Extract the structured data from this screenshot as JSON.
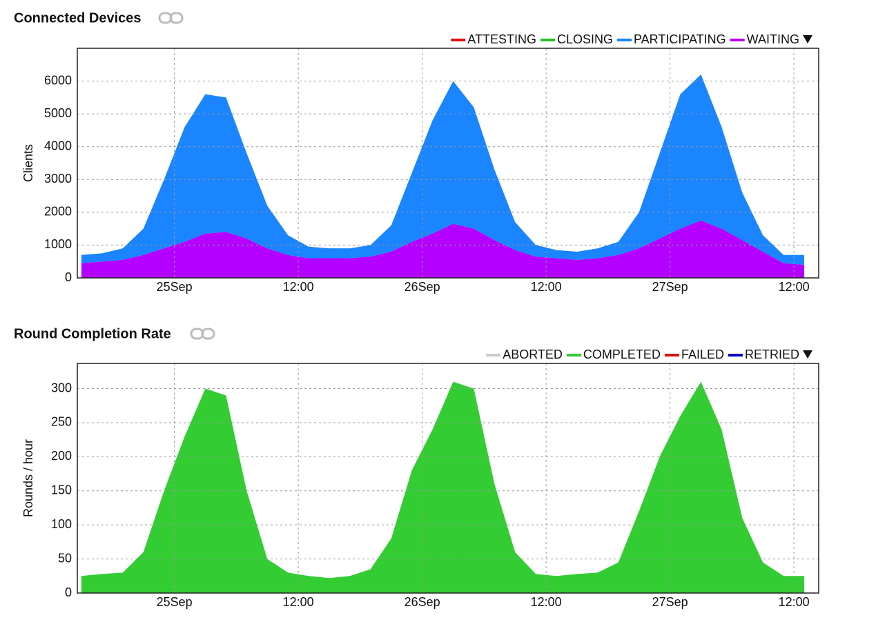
{
  "chart_data": [
    {
      "type": "area",
      "stacked": true,
      "title": "Connected Devices",
      "ylabel": "Clients",
      "x": [
        -9,
        -7,
        -5,
        -3,
        -1,
        1,
        3,
        5,
        7,
        9,
        11,
        13,
        15,
        17,
        19,
        21,
        23,
        25,
        27,
        29,
        31,
        33,
        35,
        37,
        39,
        41,
        43,
        45,
        47,
        49,
        51,
        53,
        55,
        57,
        59,
        61
      ],
      "xlim": [
        -9.4,
        62.4
      ],
      "xticks": [
        {
          "value": 0,
          "label": "25Sep"
        },
        {
          "value": 12,
          "label": "12:00"
        },
        {
          "value": 24,
          "label": "26Sep"
        },
        {
          "value": 36,
          "label": "12:00"
        },
        {
          "value": 48,
          "label": "27Sep"
        },
        {
          "value": 60,
          "label": "12:00"
        }
      ],
      "ylim": [
        0,
        7000
      ],
      "yticks": [
        0,
        1000,
        2000,
        3000,
        4000,
        5000,
        6000
      ],
      "grid": true,
      "series": [
        {
          "name": "ATTESTING",
          "color": "#e01010",
          "values": [
            0,
            0,
            0,
            0,
            0,
            0,
            0,
            0,
            0,
            0,
            0,
            0,
            0,
            0,
            0,
            0,
            0,
            0,
            0,
            0,
            0,
            0,
            0,
            0,
            0,
            0,
            0,
            0,
            0,
            0,
            0,
            0,
            0,
            0,
            0,
            0
          ]
        },
        {
          "name": "CLOSING",
          "color": "#22c022",
          "values": [
            0,
            0,
            0,
            0,
            0,
            0,
            0,
            0,
            0,
            0,
            0,
            0,
            0,
            0,
            0,
            0,
            0,
            0,
            0,
            0,
            0,
            0,
            0,
            0,
            0,
            0,
            0,
            0,
            0,
            0,
            0,
            0,
            0,
            0,
            0,
            0
          ]
        },
        {
          "name": "PARTICIPATING",
          "color": "#1a85ff",
          "values": [
            250,
            250,
            350,
            800,
            2100,
            3500,
            4250,
            4100,
            2600,
            1300,
            600,
            350,
            300,
            300,
            350,
            800,
            2100,
            3450,
            4350,
            3700,
            2150,
            850,
            350,
            250,
            250,
            300,
            400,
            1100,
            2600,
            4100,
            4450,
            3100,
            1450,
            500,
            250,
            300
          ]
        },
        {
          "name": "WAITING",
          "color": "#b400ff",
          "values": [
            450,
            500,
            550,
            700,
            900,
            1100,
            1350,
            1400,
            1200,
            900,
            700,
            600,
            600,
            600,
            650,
            800,
            1100,
            1350,
            1650,
            1500,
            1150,
            850,
            650,
            600,
            550,
            600,
            700,
            900,
            1200,
            1500,
            1750,
            1500,
            1150,
            800,
            450,
            400
          ]
        }
      ]
    },
    {
      "type": "area",
      "stacked": true,
      "title": "Round Completion Rate",
      "ylabel": "Rounds / hour",
      "x": [
        -9,
        -7,
        -5,
        -3,
        -1,
        1,
        3,
        5,
        7,
        9,
        11,
        13,
        15,
        17,
        19,
        21,
        23,
        25,
        27,
        29,
        31,
        33,
        35,
        37,
        39,
        41,
        43,
        45,
        47,
        49,
        51,
        53,
        55,
        57,
        59,
        61
      ],
      "xlim": [
        -9.4,
        62.4
      ],
      "xticks": [
        {
          "value": 0,
          "label": "25Sep"
        },
        {
          "value": 12,
          "label": "12:00"
        },
        {
          "value": 24,
          "label": "26Sep"
        },
        {
          "value": 36,
          "label": "12:00"
        },
        {
          "value": 48,
          "label": "27Sep"
        },
        {
          "value": 60,
          "label": "12:00"
        }
      ],
      "ylim": [
        0,
        337
      ],
      "yticks": [
        0,
        50,
        100,
        150,
        200,
        250,
        300
      ],
      "grid": true,
      "series": [
        {
          "name": "ABORTED",
          "color": "#cccccc",
          "values": [
            0,
            0,
            0,
            0,
            0,
            0,
            0,
            0,
            0,
            0,
            0,
            0,
            0,
            0,
            0,
            0,
            0,
            0,
            0,
            0,
            0,
            0,
            0,
            0,
            0,
            0,
            0,
            0,
            0,
            0,
            0,
            0,
            0,
            0,
            0,
            0
          ]
        },
        {
          "name": "COMPLETED",
          "color": "#33cc33",
          "values": [
            25,
            28,
            30,
            60,
            150,
            230,
            300,
            290,
            150,
            50,
            30,
            25,
            22,
            25,
            35,
            80,
            180,
            240,
            310,
            300,
            160,
            60,
            28,
            25,
            28,
            30,
            45,
            120,
            200,
            260,
            310,
            240,
            110,
            45,
            25,
            25
          ]
        },
        {
          "name": "FAILED",
          "color": "#e01010",
          "values": [
            0,
            0,
            0,
            0,
            0,
            0,
            0,
            0,
            0,
            0,
            0,
            0,
            0,
            0,
            0,
            0,
            0,
            0,
            0,
            0,
            0,
            0,
            0,
            0,
            0,
            0,
            0,
            0,
            0,
            0,
            0,
            0,
            0,
            0,
            0,
            0
          ]
        },
        {
          "name": "RETRIED",
          "color": "#0000cc",
          "values": [
            0,
            0,
            0,
            0,
            0,
            0,
            0,
            0,
            0,
            0,
            0,
            0,
            0,
            0,
            0,
            0,
            0,
            0,
            0,
            0,
            0,
            0,
            0,
            0,
            0,
            0,
            0,
            0,
            0,
            0,
            0,
            0,
            0,
            0,
            0,
            0
          ]
        }
      ]
    }
  ]
}
